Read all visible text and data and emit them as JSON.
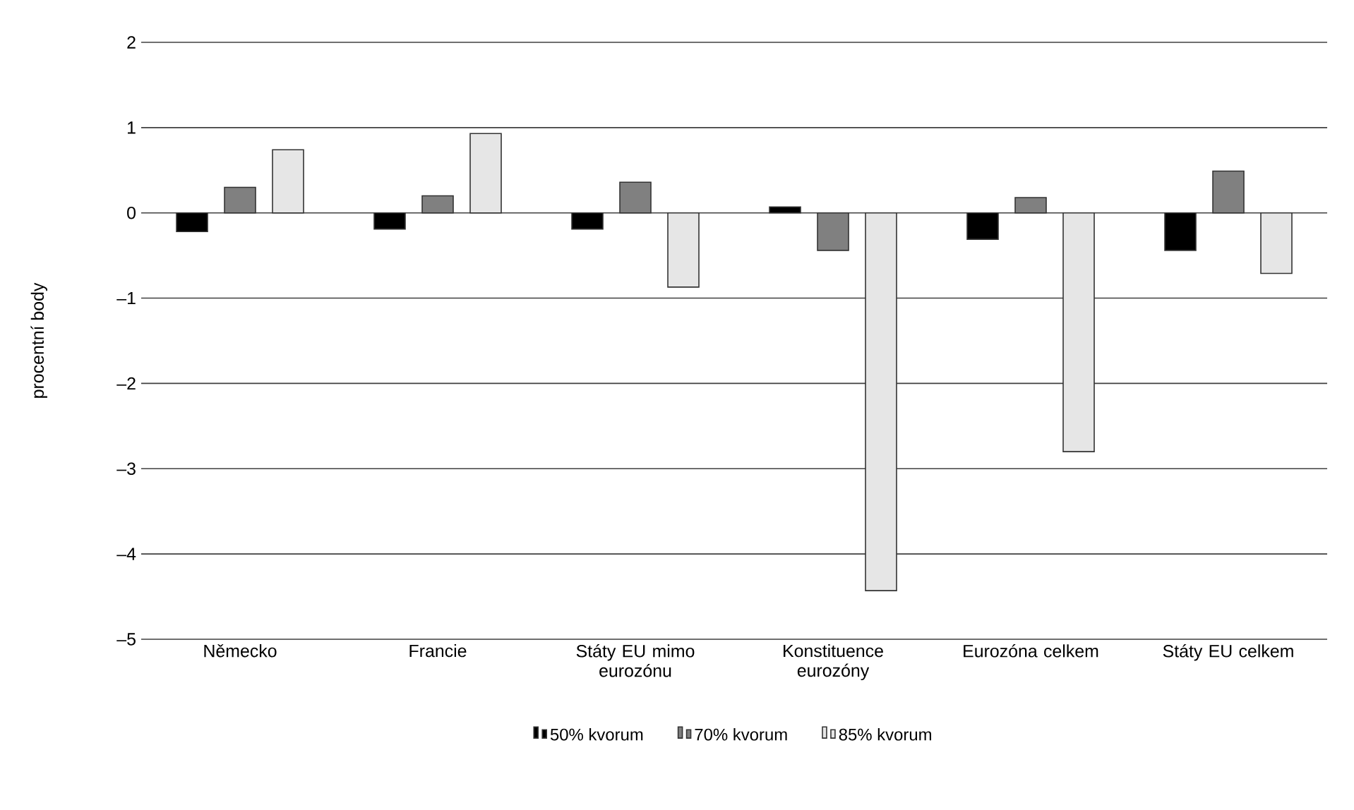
{
  "chart_data": {
    "type": "bar",
    "ylabel": "procentní body",
    "categories": [
      "Německo",
      "Francie",
      "Státy EU mimo eurozónu",
      "Konstituence eurozóny",
      "Eurozóna celkem",
      "Státy EU celkem"
    ],
    "series": [
      {
        "name": "50% kvorum",
        "color": "#000000",
        "values": [
          -0.22,
          -0.19,
          -0.19,
          0.07,
          -0.31,
          -0.44
        ]
      },
      {
        "name": "70% kvorum",
        "color": "#808080",
        "values": [
          0.3,
          0.2,
          0.36,
          -0.44,
          0.18,
          0.49
        ]
      },
      {
        "name": "85% kvorum",
        "color": "#e6e6e6",
        "values": [
          0.74,
          0.93,
          -0.87,
          -4.43,
          -2.8,
          -0.71
        ]
      }
    ],
    "ylim": [
      -5,
      2
    ],
    "yticks": [
      {
        "value": -5,
        "label": "–5"
      },
      {
        "value": -4,
        "label": "–4"
      },
      {
        "value": -3,
        "label": "–3"
      },
      {
        "value": -2,
        "label": "–2"
      },
      {
        "value": -1,
        "label": "–1"
      },
      0,
      1,
      2
    ],
    "grid": "y",
    "legend": "bottom"
  }
}
